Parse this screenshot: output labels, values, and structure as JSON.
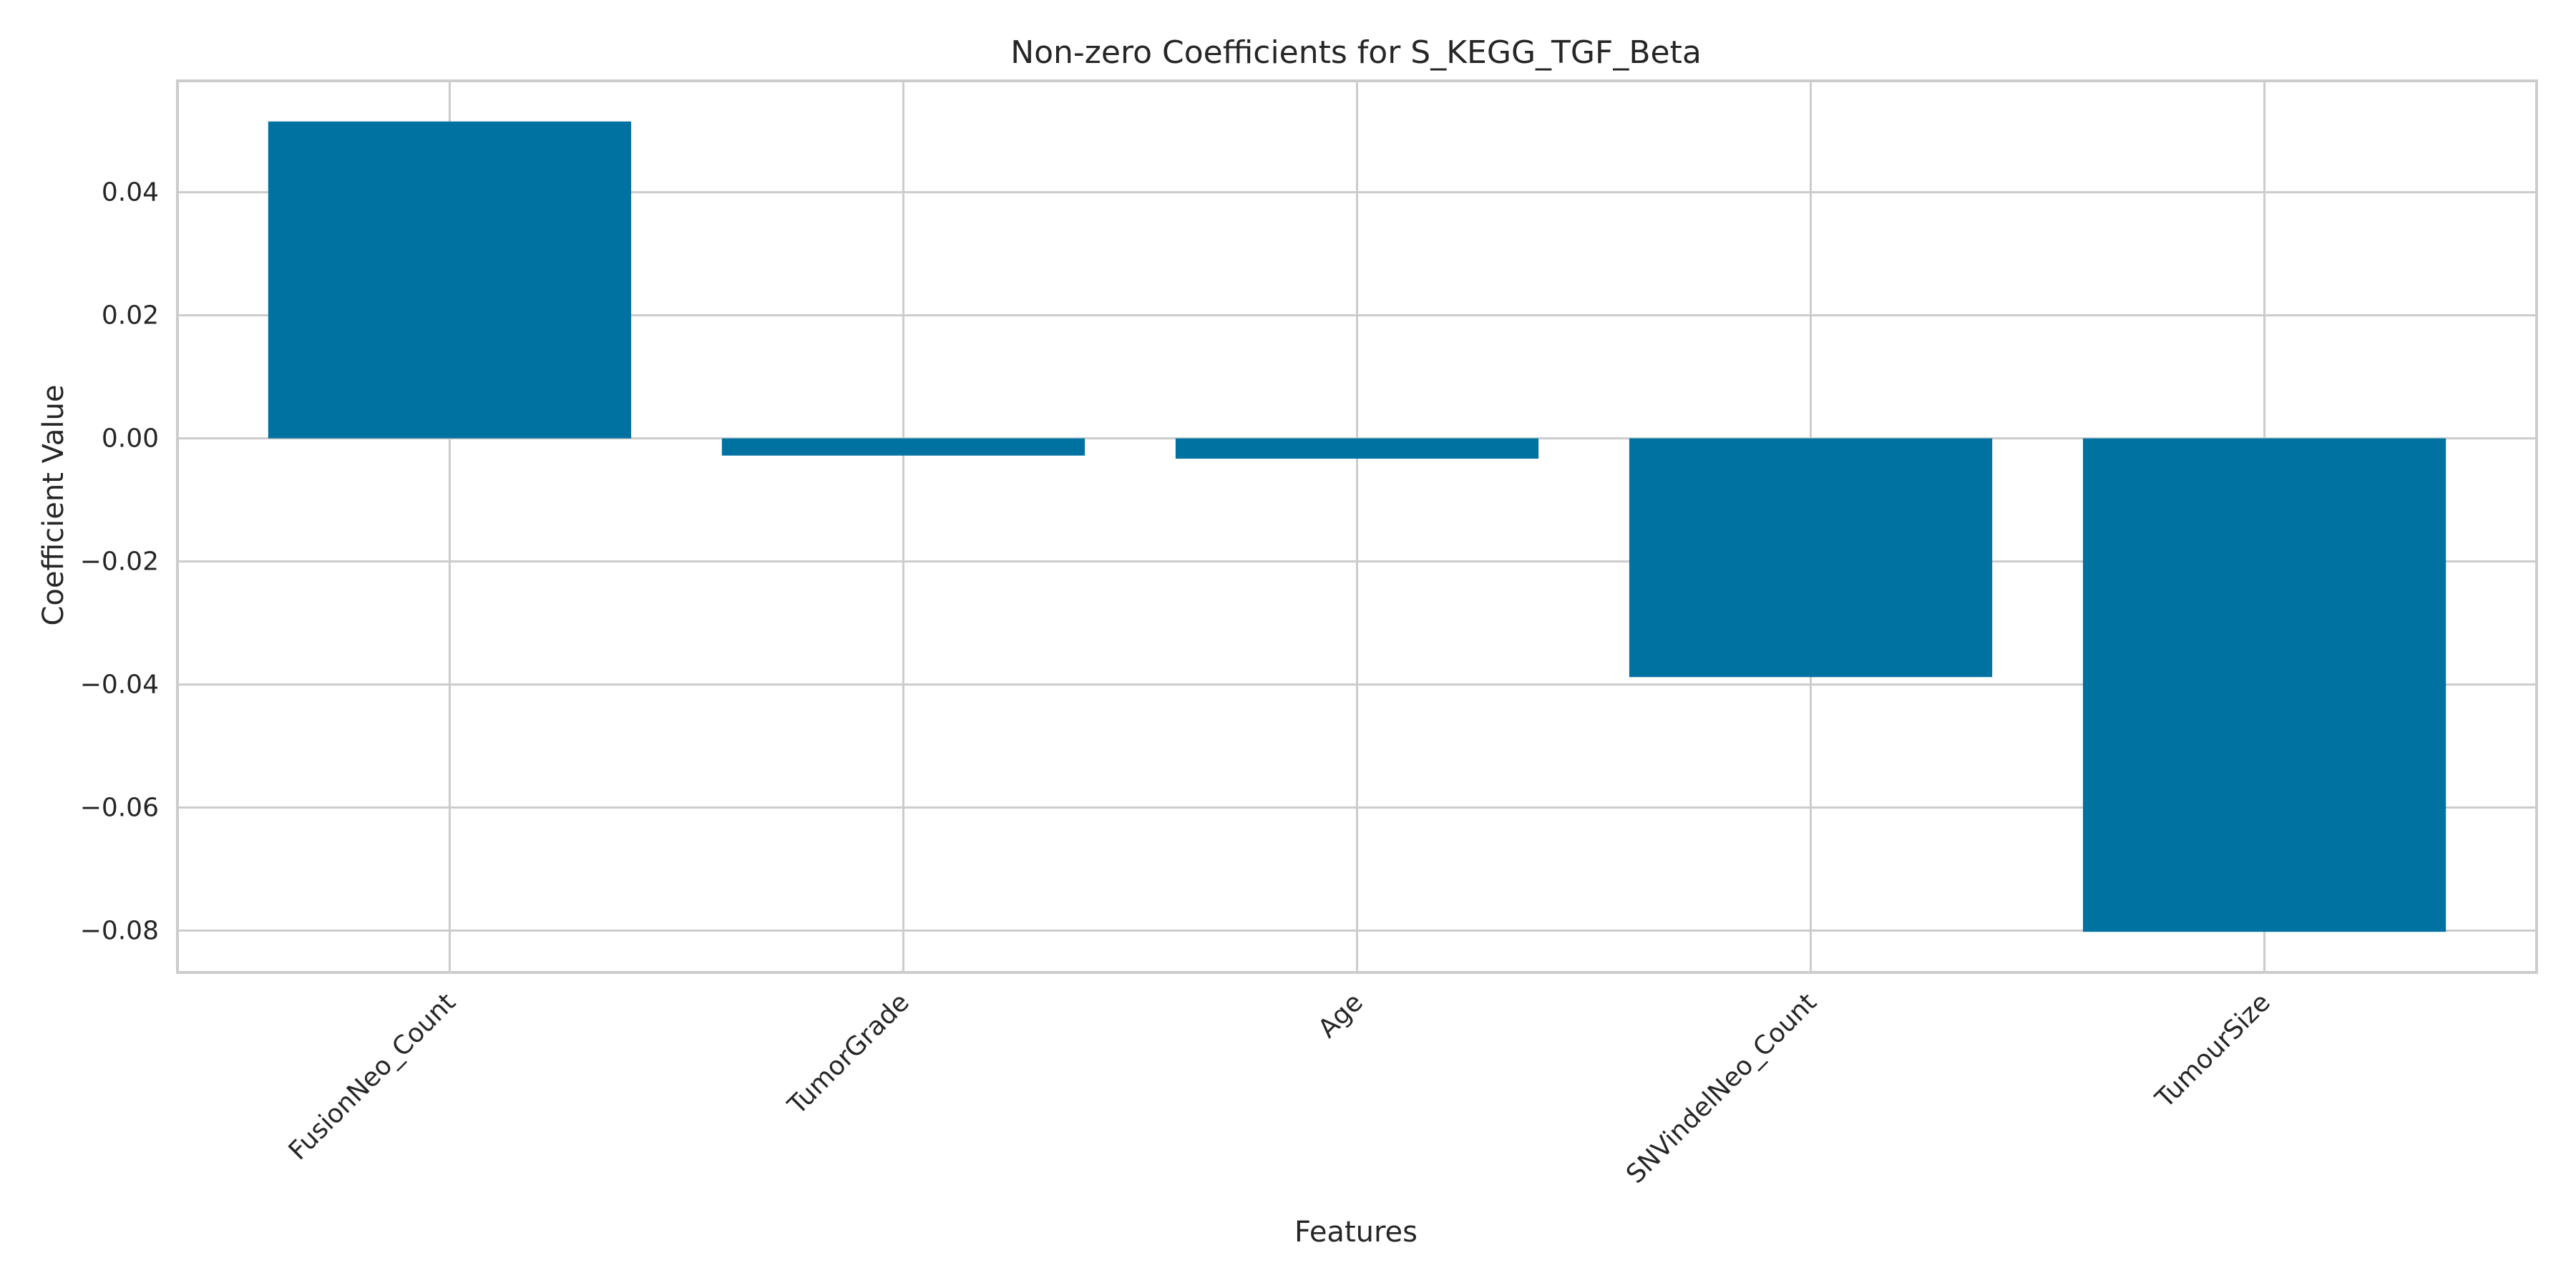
{
  "chart_data": {
    "type": "bar",
    "title": "Non-zero Coefficients for S_KEGG_TGF_Beta",
    "xlabel": "Features",
    "ylabel": "Coefficient Value",
    "categories": [
      "FusionNeo_Count",
      "TumorGrade",
      "Age",
      "SNVindelNeo_Count",
      "TumourSize"
    ],
    "values": [
      0.0515,
      -0.0028,
      -0.0033,
      -0.0388,
      -0.0802
    ],
    "ylim": [
      -0.0868,
      0.0581
    ],
    "yticks": [
      0.04,
      0.02,
      0.0,
      -0.02,
      -0.04,
      -0.06,
      -0.08
    ],
    "ytick_labels": [
      "0.04",
      "0.02",
      "0.00",
      "−0.02",
      "−0.04",
      "−0.06",
      "−0.08"
    ],
    "grid": true,
    "bar_color": "#0072a2",
    "grid_color": "#cccccc",
    "frame_color": "#cccccc"
  }
}
